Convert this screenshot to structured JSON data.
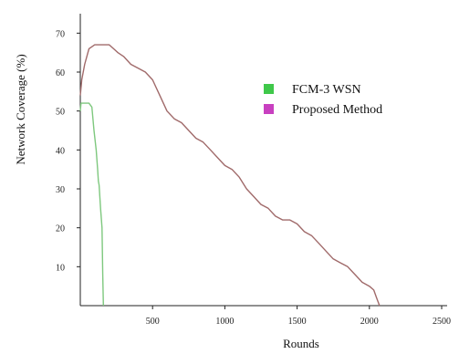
{
  "chart_data": {
    "type": "line",
    "xlabel": "Rounds",
    "ylabel": "Network Coverage (%)",
    "xlim": [
      0,
      2500
    ],
    "ylim": [
      0,
      75
    ],
    "xticks": [
      500,
      1000,
      1500,
      2000,
      2500
    ],
    "yticks": [
      10,
      20,
      30,
      40,
      50,
      60,
      70
    ],
    "grid": false,
    "legend_position": "right",
    "series": [
      {
        "name": "FCM-3 WSN",
        "color": "#7ec87e",
        "legend_color": "#3fc84a",
        "x": [
          0,
          5,
          60,
          80,
          95,
          110,
          120,
          125,
          130,
          140,
          150,
          155,
          160
        ],
        "y": [
          50,
          52,
          52,
          51,
          45,
          40,
          35,
          32,
          31,
          25,
          20,
          8,
          0
        ]
      },
      {
        "name": "Proposed Method",
        "color": "#a06a6a",
        "legend_color": "#c840c0",
        "x": [
          0,
          10,
          30,
          60,
          100,
          150,
          200,
          260,
          300,
          350,
          400,
          450,
          500,
          550,
          600,
          650,
          700,
          750,
          800,
          850,
          900,
          950,
          1000,
          1050,
          1100,
          1150,
          1200,
          1250,
          1300,
          1350,
          1400,
          1450,
          1500,
          1550,
          1600,
          1650,
          1700,
          1750,
          1800,
          1850,
          1900,
          1950,
          2000,
          2030,
          2050,
          2060,
          2070
        ],
        "y": [
          54,
          58,
          62,
          66,
          67,
          67,
          67,
          65,
          64,
          62,
          61,
          60,
          58,
          54,
          50,
          48,
          47,
          45,
          43,
          42,
          40,
          38,
          36,
          35,
          33,
          30,
          28,
          26,
          25,
          23,
          22,
          22,
          21,
          19,
          18,
          16,
          14,
          12,
          11,
          10,
          8,
          6,
          5,
          4,
          2,
          1,
          0
        ]
      }
    ]
  }
}
